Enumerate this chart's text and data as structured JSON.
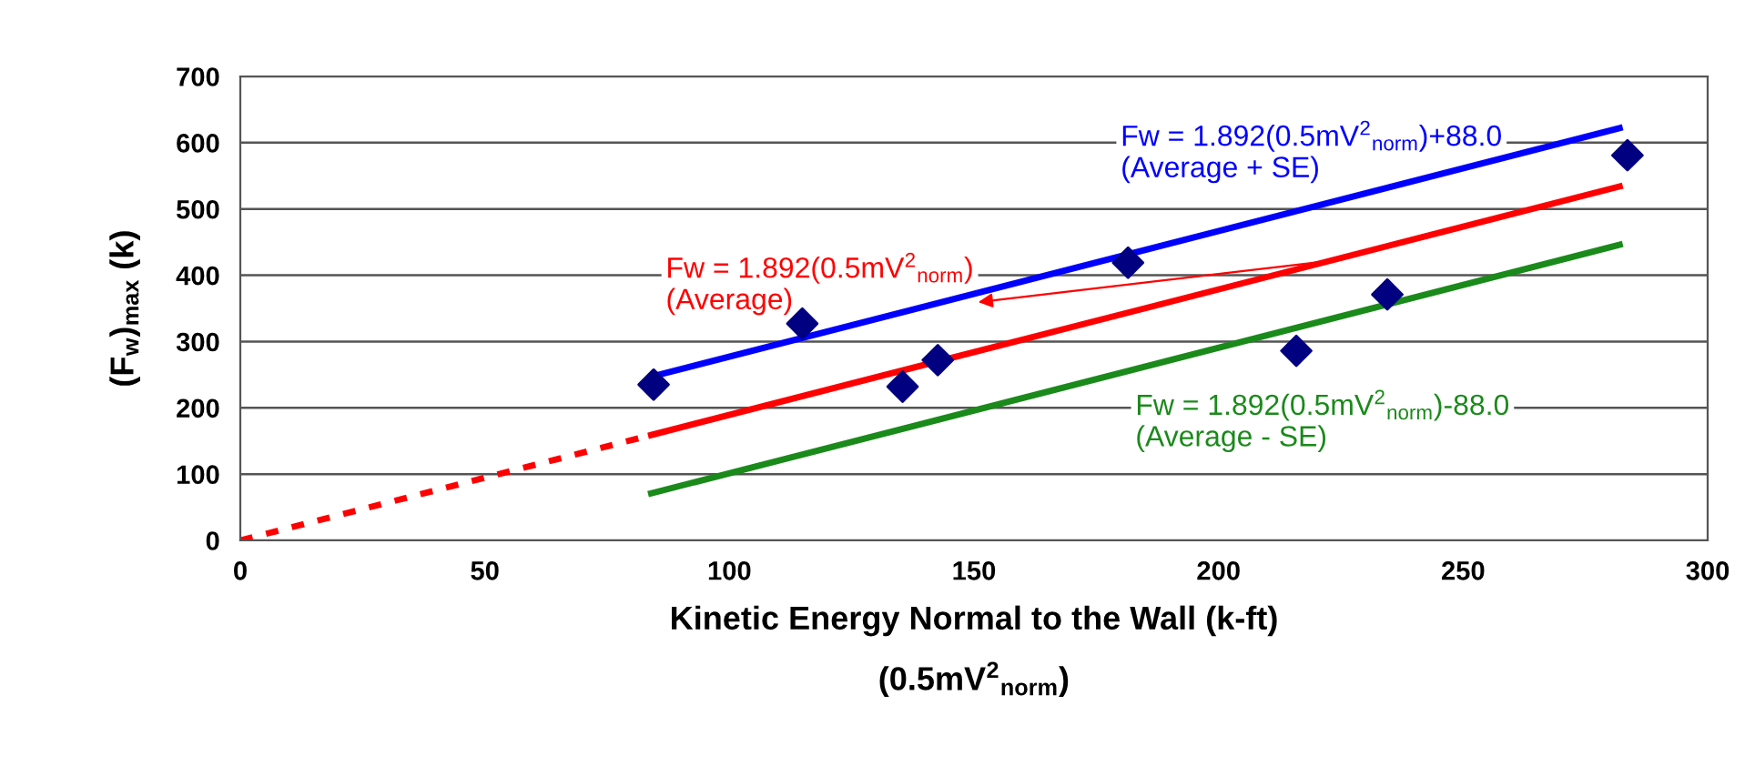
{
  "chart_data": {
    "type": "line",
    "xlabel": "Kinetic Energy Normal to the Wall (k-ft)\n(0.5mV$^{2}$$_{norm}$)",
    "ylabel": "(F$_{w}$)$_{max}$ (k)",
    "xlim": [
      0,
      300
    ],
    "xticks": [
      0,
      50,
      100,
      150,
      200,
      250,
      300
    ],
    "ylim": [
      0,
      700
    ],
    "yticks": [
      0,
      100,
      200,
      300,
      400,
      500,
      600,
      700
    ],
    "grid": "y",
    "legend": false,
    "series": [
      {
        "name": "Fw = 1.892(0.5mV$^{2}$$_{norm}$)+88.0\n(Average + SE)",
        "color": "#0000ff",
        "x": [
          84,
          282
        ],
        "values": [
          247,
          622
        ],
        "line_style": "solid"
      },
      {
        "name": "Fw = 1.892(0.5mV$^{2}$$_{norm}$)\n(Average)",
        "color": "#ff0000",
        "x": [
          84,
          282
        ],
        "values": [
          159,
          534
        ],
        "line_style": "solid"
      },
      {
        "color": "#ff0000",
        "x": [
          0,
          84
        ],
        "values": [
          0,
          159
        ],
        "line_style": "dashed"
      },
      {
        "name": "Fw = 1.892(0.5mV$^{2}$$_{norm}$)-88.0\n(Average - SE)",
        "color": "#1a8a1a",
        "x": [
          84,
          282
        ],
        "values": [
          71,
          446
        ],
        "line_style": "solid"
      },
      {
        "type": "scatter",
        "color": "#000080",
        "marker": "diamond",
        "x": [
          84.5,
          114.9,
          135.4,
          142.6,
          181.5,
          215.9,
          234.5,
          283.6
        ],
        "values": [
          235,
          327,
          232,
          272,
          419,
          286,
          371,
          581
        ]
      }
    ]
  }
}
